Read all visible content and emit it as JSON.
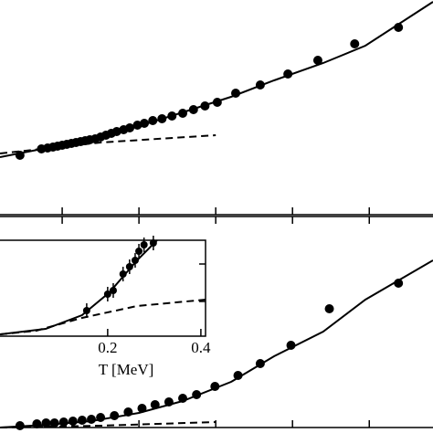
{
  "chart_data": [
    {
      "type": "scatter",
      "xlim": [
        0.019,
        0.583
      ],
      "ylim": [
        0,
        2.35
      ],
      "xticks": [
        0.1,
        0.2,
        0.3,
        0.4,
        0.5
      ],
      "series": [
        {
          "style": "markers",
          "color": "#000000",
          "x": [
            0.045,
            0.073,
            0.081,
            0.088,
            0.094,
            0.1,
            0.106,
            0.112,
            0.118,
            0.124,
            0.13,
            0.136,
            0.143,
            0.15,
            0.157,
            0.164,
            0.171,
            0.18,
            0.188,
            0.198,
            0.207,
            0.218,
            0.23,
            0.243,
            0.257,
            0.271,
            0.286,
            0.302,
            0.326,
            0.358,
            0.394,
            0.433,
            0.481,
            0.538
          ],
          "y": [
            0.65,
            0.72,
            0.73,
            0.74,
            0.75,
            0.76,
            0.77,
            0.78,
            0.79,
            0.8,
            0.81,
            0.82,
            0.83,
            0.85,
            0.87,
            0.89,
            0.91,
            0.93,
            0.95,
            0.98,
            1.0,
            1.03,
            1.05,
            1.08,
            1.11,
            1.15,
            1.19,
            1.23,
            1.33,
            1.42,
            1.54,
            1.69,
            1.87,
            2.05
          ]
        },
        {
          "style": "solid",
          "color": "#000000",
          "x": [
            0.019,
            0.08,
            0.138,
            0.2,
            0.257,
            0.32,
            0.376,
            0.44,
            0.495,
            0.583
          ],
          "y": [
            0.63,
            0.73,
            0.83,
            0.97,
            1.12,
            1.29,
            1.47,
            1.66,
            1.85,
            2.33
          ]
        },
        {
          "style": "dashed",
          "color": "#000000",
          "x": [
            0.019,
            0.15,
            0.3
          ],
          "y": [
            0.67,
            0.79,
            0.87
          ]
        }
      ]
    },
    {
      "type": "scatter",
      "xlim": [
        0.019,
        0.583
      ],
      "ylim": [
        0,
        2.31
      ],
      "xticks": [
        0.1,
        0.2,
        0.3,
        0.4,
        0.5
      ],
      "series": [
        {
          "style": "markers",
          "color": "#000000",
          "x": [
            0.045,
            0.067,
            0.079,
            0.09,
            0.102,
            0.114,
            0.126,
            0.138,
            0.15,
            0.168,
            0.186,
            0.204,
            0.221,
            0.239,
            0.257,
            0.275,
            0.299,
            0.329,
            0.358,
            0.398,
            0.448,
            0.538
          ],
          "y": [
            0.02,
            0.04,
            0.05,
            0.05,
            0.06,
            0.07,
            0.08,
            0.09,
            0.11,
            0.13,
            0.17,
            0.21,
            0.25,
            0.28,
            0.32,
            0.36,
            0.45,
            0.57,
            0.7,
            0.9,
            1.3,
            1.58
          ]
        },
        {
          "style": "solid",
          "color": "#000000",
          "x": [
            0.019,
            0.08,
            0.138,
            0.2,
            0.257,
            0.32,
            0.376,
            0.44,
            0.495,
            0.583
          ],
          "y": [
            0.0,
            0.03,
            0.07,
            0.16,
            0.29,
            0.5,
            0.78,
            1.05,
            1.4,
            1.83
          ]
        },
        {
          "style": "dashed",
          "color": "#000000",
          "x": [
            0.019,
            0.15,
            0.3
          ],
          "y": [
            0.0,
            0.02,
            0.06
          ]
        }
      ]
    },
    {
      "type": "scatter",
      "xlim": [
        -0.031,
        0.41
      ],
      "ylim": [
        0,
        1.05
      ],
      "x_label": "T [MeV]",
      "xticks": [
        {
          "value": 0.2,
          "label": "0.2"
        },
        {
          "value": 0.4,
          "label": "0.4"
        }
      ],
      "yticks": [
        0.38,
        0.79
      ],
      "series": [
        {
          "style": "markers",
          "color": "#000000",
          "x": [
            0.155,
            0.2,
            0.212,
            0.233,
            0.247,
            0.259,
            0.267,
            0.278,
            0.298
          ],
          "y": [
            0.28,
            0.46,
            0.5,
            0.68,
            0.76,
            0.83,
            0.93,
            1.0,
            1.02
          ],
          "err": [
            0.08,
            0.08,
            0.08,
            0.08,
            0.08,
            0.08,
            0.08,
            0.08,
            0.08
          ]
        },
        {
          "style": "solid",
          "color": "#000000",
          "x": [
            -0.031,
            0.067,
            0.145,
            0.204,
            0.263,
            0.306
          ],
          "y": [
            0.02,
            0.08,
            0.23,
            0.48,
            0.83,
            1.05
          ]
        },
        {
          "style": "dashed",
          "color": "#000000",
          "x": [
            -0.031,
            0.047,
            0.145,
            0.263,
            0.41
          ],
          "y": [
            0.02,
            0.06,
            0.2,
            0.33,
            0.4
          ]
        }
      ]
    }
  ]
}
